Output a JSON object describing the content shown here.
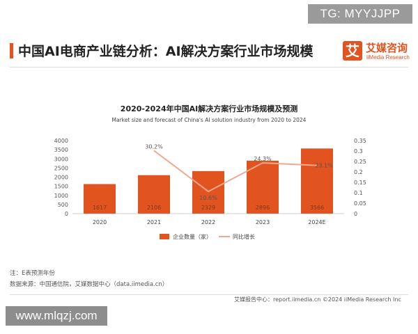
{
  "watermark_top": "TG: MYYJJPP",
  "page_title": "中国AI电商产业链分析：AI解决方案行业市场规模",
  "logo": {
    "mark": "艾",
    "name_cn": "艾媒咨询",
    "name_en": "iiMedia Research"
  },
  "colors": {
    "accent": "#e2541f",
    "bar": "#e2541f",
    "line": "#f0a98c"
  },
  "chart_data": {
    "type": "bar",
    "title": "2020-2024年中国AI解决方案行业市场规模及预测",
    "subtitle": "Market size and forecast of China's AI solution industry from 2020 to 2024",
    "categories": [
      "2020",
      "2021",
      "2022",
      "2023",
      "2024E"
    ],
    "series": [
      {
        "name": "企业数量（家）",
        "type": "bar",
        "axis": "left",
        "values": [
          1617,
          2106,
          2329,
          2896,
          3566
        ],
        "labels": [
          "1617",
          "2106",
          "2329",
          "2896",
          "3566"
        ]
      },
      {
        "name": "同比增长",
        "type": "line",
        "axis": "right",
        "values": [
          null,
          0.302,
          0.106,
          0.243,
          0.231
        ],
        "labels": [
          "",
          "30.2%",
          "10.6%",
          "24.3%",
          "23.1%"
        ]
      }
    ],
    "y_left": {
      "min": 0,
      "max": 4000,
      "ticks": [
        "0",
        "500",
        "1000",
        "1500",
        "2000",
        "2500",
        "3000",
        "3500",
        "4000"
      ]
    },
    "y_right": {
      "min": 0,
      "max": 0.35,
      "ticks": [
        "0",
        "0.05",
        "0.1",
        "0.15",
        "0.2",
        "0.25",
        "0.3",
        "0.35"
      ]
    },
    "grid": false,
    "legend_position": "bottom"
  },
  "footnotes": {
    "note": "注：E表预测年份",
    "source": "数据来源：中国通信院，艾媒数据中心（data.iimedia.cn）"
  },
  "footer": {
    "text": "艾媒报告中心：report.iimedia.cn    ©2024  iiMedia Research  Inc"
  },
  "watermark_bottom": "www.mlqzj.com"
}
